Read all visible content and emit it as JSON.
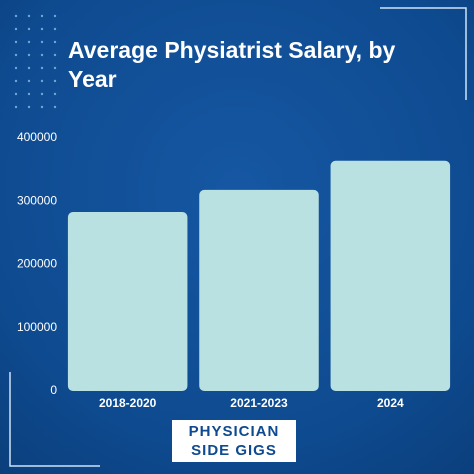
{
  "chart_data": {
    "type": "bar",
    "title": "Average Physiatrist Salary, by Year",
    "categories": [
      "2018-2020",
      "2021-2023",
      "2024"
    ],
    "values": [
      283000,
      318000,
      364000
    ],
    "color": "#b9e1e1",
    "ylim": [
      0,
      400000
    ],
    "yticks": [
      0,
      100000,
      200000,
      300000,
      400000
    ],
    "grid": false,
    "brand": [
      "PHYSICIAN",
      "SIDE GIGS"
    ]
  }
}
